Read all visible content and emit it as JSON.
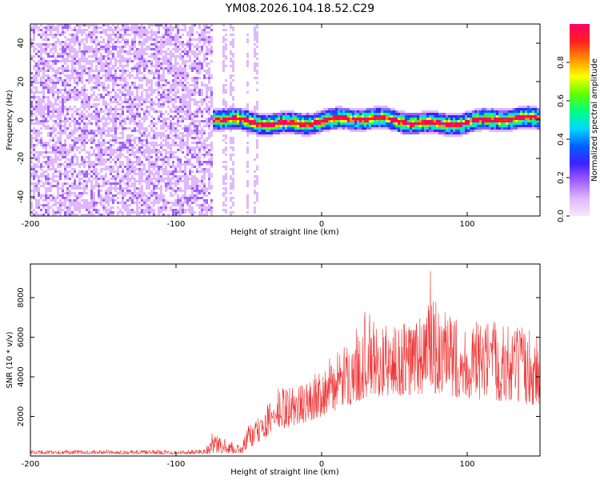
{
  "title": "YM08.2026.104.18.52.C29",
  "chart_data": [
    {
      "type": "heatmap",
      "xlabel": "Height of straight line (km)",
      "ylabel": "Frequency (Hz)",
      "xlim": [
        -200,
        150
      ],
      "ylim": [
        -50,
        50
      ],
      "x_ticks": [
        -200,
        -100,
        0,
        100
      ],
      "x_tick_labels": [
        "-200",
        "-100",
        "0",
        "100"
      ],
      "y_ticks": [
        -40,
        -20,
        0,
        20,
        40
      ],
      "y_tick_labels": [
        "-40",
        "-20",
        "0",
        "20",
        "40"
      ],
      "colorbar": {
        "label": "Normalized spectral amplitude",
        "range": [
          0,
          1
        ],
        "ticks": [
          0.0,
          0.2,
          0.4,
          0.6,
          0.8
        ],
        "tick_labels": [
          "0.0",
          "0.2",
          "0.4",
          "0.6",
          "0.8"
        ],
        "colors": [
          "#f6e8ff",
          "#e0b8ff",
          "#a060ff",
          "#4020ff",
          "#0060ff",
          "#00d8ff",
          "#00ff80",
          "#60ff00",
          "#ffff00",
          "#ff9000",
          "#ff2020",
          "#ff0060"
        ]
      },
      "noise_region_km": [
        -200,
        -75
      ],
      "streak_positions_km": [
        -67,
        -62,
        -52,
        -46
      ],
      "signal_region_km": [
        -75,
        150
      ],
      "signal_center_hz": 0,
      "signal_halfwidth_hz": 6
    },
    {
      "type": "line",
      "xlabel": "Height of straight line (km)",
      "ylabel": "SNR (10 * v/v)",
      "xlim": [
        -200,
        150
      ],
      "ylim": [
        0,
        9700
      ],
      "x_ticks": [
        -200,
        -100,
        0,
        100
      ],
      "x_tick_labels": [
        "-200",
        "-100",
        "0",
        "100"
      ],
      "y_ticks": [
        2000,
        4000,
        6000,
        8000
      ],
      "y_tick_labels": [
        "2000",
        "4000",
        "6000",
        "8000"
      ],
      "series": [
        {
          "name": "SNR",
          "color": "#ee3333",
          "envelope": {
            "x": [
              -200,
              -150,
              -90,
              -80,
              -75,
              -65,
              -55,
              -52,
              -48,
              -45,
              -40,
              -30,
              -20,
              -10,
              0,
              10,
              20,
              30,
              40,
              50,
              60,
              70,
              75,
              80,
              90,
              100,
              110,
              120,
              130,
              140,
              150
            ],
            "low": [
              100,
              100,
              100,
              100,
              120,
              150,
              150,
              200,
              400,
              600,
              900,
              1300,
              1500,
              1700,
              2000,
              2300,
              2600,
              2900,
              3000,
              3000,
              3000,
              3100,
              3100,
              3100,
              3000,
              2900,
              2800,
              2800,
              2700,
              2600,
              2500
            ],
            "high": [
              300,
              300,
              300,
              400,
              1200,
              800,
              500,
              1300,
              2000,
              1800,
              2200,
              3500,
              3600,
              3700,
              4700,
              5200,
              5800,
              7500,
              6600,
              6700,
              7000,
              7500,
              9500,
              7300,
              7200,
              6800,
              6800,
              7000,
              6700,
              6500,
              6600
            ]
          }
        }
      ]
    }
  ]
}
